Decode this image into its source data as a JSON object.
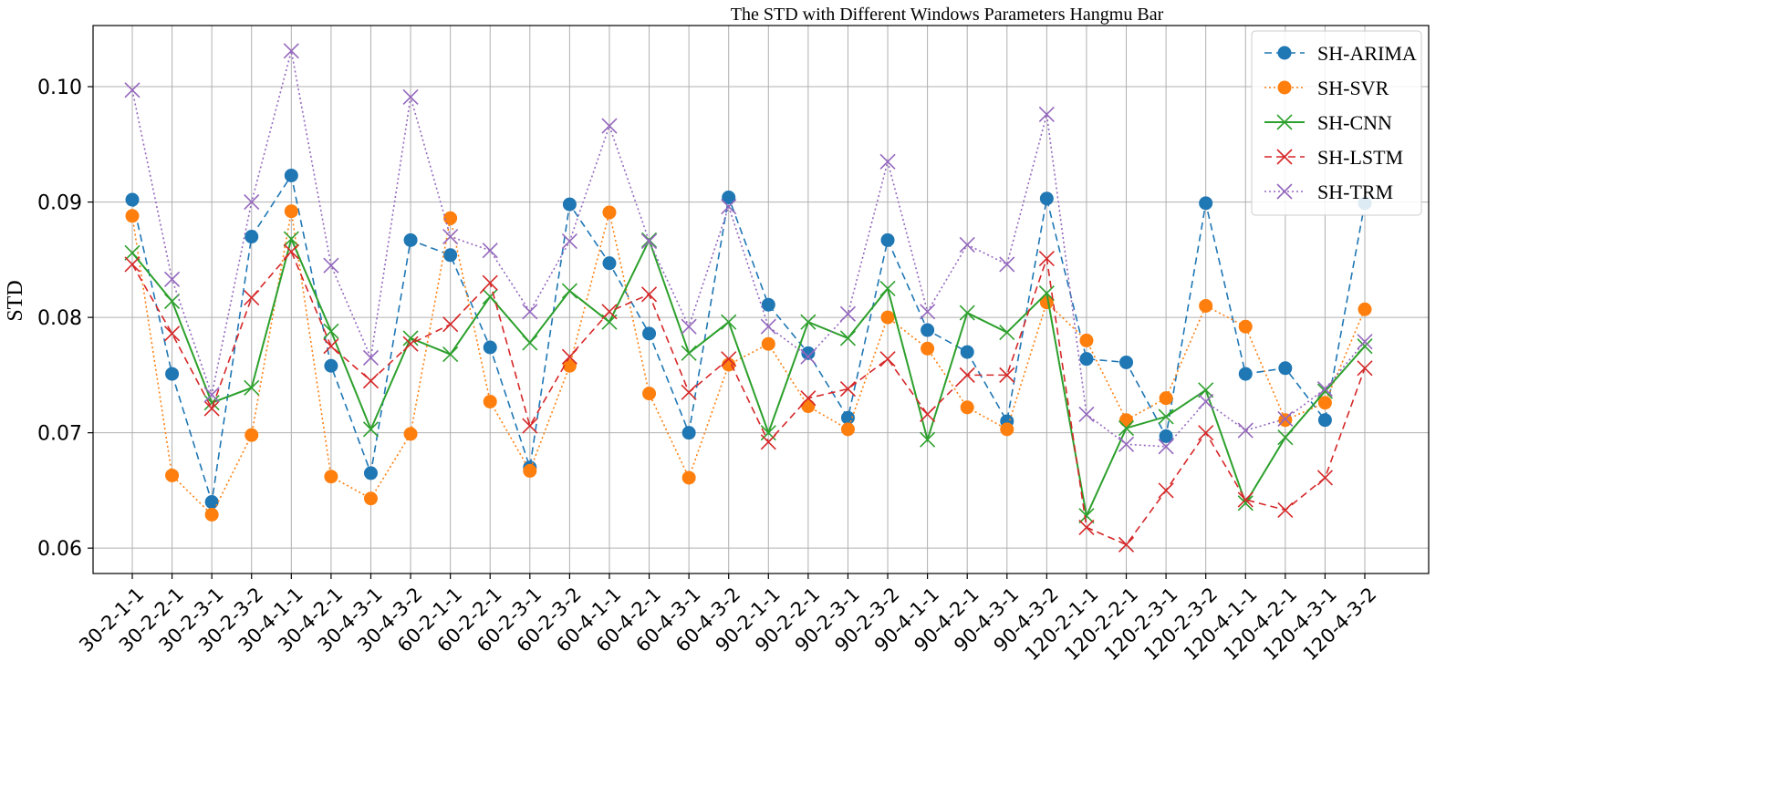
{
  "chart_data": {
    "type": "line",
    "title": "The STD with Different Windows Parameters Hangmu Bar",
    "xlabel": "",
    "ylabel": "STD",
    "ylim": [
      0.0578,
      0.1053
    ],
    "yticks": [
      0.06,
      0.07,
      0.08,
      0.09,
      0.1
    ],
    "ytick_labels": [
      "0.06",
      "0.07",
      "0.08",
      "0.09",
      "0.10"
    ],
    "grid": true,
    "legend_position": "top-right",
    "categories": [
      "30-2-1-1",
      "30-2-2-1",
      "30-2-3-1",
      "30-2-3-2",
      "30-4-1-1",
      "30-4-2-1",
      "30-4-3-1",
      "30-4-3-2",
      "60-2-1-1",
      "60-2-2-1",
      "60-2-3-1",
      "60-2-3-2",
      "60-4-1-1",
      "60-4-2-1",
      "60-4-3-1",
      "60-4-3-2",
      "90-2-1-1",
      "90-2-2-1",
      "90-2-3-1",
      "90-2-3-2",
      "90-4-1-1",
      "90-4-2-1",
      "90-4-3-1",
      "90-4-3-2",
      "120-2-1-1",
      "120-2-2-1",
      "120-2-3-1",
      "120-2-3-2",
      "120-4-1-1",
      "120-4-2-1",
      "120-4-3-1",
      "120-4-3-2"
    ],
    "series": [
      {
        "name": "SH-ARIMA",
        "color": "#1f77b4",
        "line_style": "dashed",
        "marker": "circle",
        "values": [
          0.0902,
          0.0751,
          0.064,
          0.087,
          0.0923,
          0.0758,
          0.0665,
          0.0867,
          0.0854,
          0.0774,
          0.067,
          0.0898,
          0.0847,
          0.0786,
          0.07,
          0.0904,
          0.0811,
          0.0769,
          0.0713,
          0.0867,
          0.0789,
          0.077,
          0.071,
          0.0903,
          0.0764,
          0.0761,
          0.0697,
          0.0899,
          0.0751,
          0.0756,
          0.0711,
          0.0899
        ]
      },
      {
        "name": "SH-SVR",
        "color": "#ff7f0e",
        "line_style": "dotted",
        "marker": "circle",
        "values": [
          0.0888,
          0.0663,
          0.0629,
          0.0698,
          0.0892,
          0.0662,
          0.0643,
          0.0699,
          0.0886,
          0.0727,
          0.0667,
          0.0758,
          0.0891,
          0.0734,
          0.0661,
          0.0759,
          0.0777,
          0.0723,
          0.0703,
          0.08,
          0.0773,
          0.0722,
          0.0703,
          0.0813,
          0.078,
          0.0711,
          0.073,
          0.081,
          0.0792,
          0.0711,
          0.0726,
          0.0807
        ]
      },
      {
        "name": "SH-CNN",
        "color": "#2ca02c",
        "line_style": "solid",
        "marker": "x",
        "values": [
          0.0856,
          0.0814,
          0.0726,
          0.0739,
          0.0868,
          0.0788,
          0.0703,
          0.0782,
          0.0768,
          0.0818,
          0.0778,
          0.0823,
          0.0796,
          0.0867,
          0.0769,
          0.0796,
          0.07,
          0.0796,
          0.0782,
          0.0825,
          0.0694,
          0.0804,
          0.0787,
          0.0821,
          0.0628,
          0.0704,
          0.0714,
          0.0737,
          0.0639,
          0.0696,
          0.0736,
          0.0775
        ]
      },
      {
        "name": "SH-LSTM",
        "color": "#d62728",
        "line_style": "dashed",
        "marker": "x",
        "values": [
          0.0846,
          0.0786,
          0.0721,
          0.0817,
          0.0857,
          0.0775,
          0.0745,
          0.0777,
          0.0794,
          0.083,
          0.0706,
          0.0766,
          0.0805,
          0.082,
          0.0735,
          0.0764,
          0.0692,
          0.073,
          0.0738,
          0.0764,
          0.0716,
          0.075,
          0.075,
          0.0851,
          0.0618,
          0.0603,
          0.065,
          0.07,
          0.0642,
          0.0633,
          0.0661,
          0.0756
        ]
      },
      {
        "name": "SH-TRM",
        "color": "#9467bd",
        "line_style": "dotted",
        "marker": "x",
        "values": [
          0.0997,
          0.0833,
          0.0733,
          0.09,
          0.1031,
          0.0845,
          0.0765,
          0.0991,
          0.087,
          0.0858,
          0.0805,
          0.0866,
          0.0966,
          0.0866,
          0.0792,
          0.0896,
          0.0792,
          0.0766,
          0.0803,
          0.0935,
          0.0805,
          0.0863,
          0.0846,
          0.0976,
          0.0716,
          0.069,
          0.0688,
          0.0727,
          0.0702,
          0.0712,
          0.0738,
          0.0779
        ]
      }
    ]
  }
}
